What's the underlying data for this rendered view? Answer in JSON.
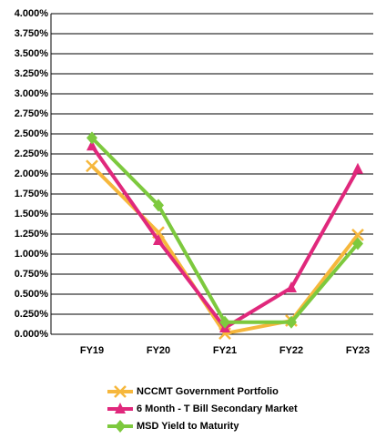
{
  "chart_data": {
    "type": "line",
    "categories": [
      "FY19",
      "FY20",
      "FY21",
      "FY22",
      "FY23"
    ],
    "series": [
      {
        "name": "NCCMT Government Portfolio",
        "color": "#f6b73c",
        "marker": "x",
        "values": [
          2.1,
          1.27,
          0.01,
          0.17,
          1.24
        ]
      },
      {
        "name": "6 Month - T Bill Secondary Market",
        "color": "#e0287c",
        "marker": "triangle",
        "values": [
          2.35,
          1.17,
          0.08,
          0.58,
          2.06
        ]
      },
      {
        "name": "MSD Yield to Maturity",
        "color": "#7dc93e",
        "marker": "diamond",
        "values": [
          2.45,
          1.61,
          0.15,
          0.15,
          1.13
        ]
      }
    ],
    "ylim": [
      0,
      4
    ],
    "yticks": [
      {
        "value": 0,
        "label": "0.000%"
      },
      {
        "value": 0.25,
        "label": "0.250%"
      },
      {
        "value": 0.5,
        "label": "0.500%"
      },
      {
        "value": 0.75,
        "label": "0.750%"
      },
      {
        "value": 1,
        "label": "1.000%"
      },
      {
        "value": 1.25,
        "label": "1.250%"
      },
      {
        "value": 1.5,
        "label": "1.500%"
      },
      {
        "value": 1.75,
        "label": "1.750%"
      },
      {
        "value": 2,
        "label": "2.000%"
      },
      {
        "value": 2.25,
        "label": "2.250%"
      },
      {
        "value": 2.5,
        "label": "2.500%"
      },
      {
        "value": 2.75,
        "label": "2.750%"
      },
      {
        "value": 3,
        "label": "3.000%"
      },
      {
        "value": 3.25,
        "label": "3.250%"
      },
      {
        "value": 3.5,
        "label": "3.500%"
      },
      {
        "value": 3.75,
        "label": "3.750%"
      },
      {
        "value": 4,
        "label": "4.000%"
      }
    ],
    "grid": true,
    "legend": "bottom"
  }
}
